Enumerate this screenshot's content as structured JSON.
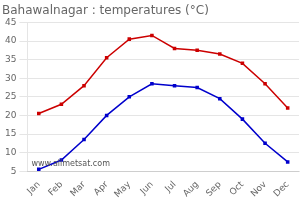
{
  "chart_data": {
    "type": "line",
    "title": "Bahawalnagar : temperatures (°C)",
    "categories": [
      "Jan",
      "Feb",
      "Mar",
      "Apr",
      "May",
      "Jun",
      "Jul",
      "Aug",
      "Sep",
      "Oct",
      "Nov",
      "Dec"
    ],
    "series": [
      {
        "color": "#cc0000",
        "marker": "square",
        "values": [
          20.5,
          23.0,
          28.0,
          35.5,
          40.5,
          41.5,
          38.0,
          37.5,
          36.5,
          34.0,
          28.5,
          22.0
        ]
      },
      {
        "color": "#0000cc",
        "marker": "square",
        "values": [
          5.5,
          8.0,
          13.5,
          20.0,
          25.0,
          28.5,
          28.0,
          27.5,
          24.5,
          19.0,
          12.5,
          7.5
        ]
      }
    ],
    "ylim": [
      5,
      45
    ],
    "yticks": [
      5,
      10,
      15,
      20,
      25,
      30,
      35,
      40,
      45
    ],
    "grid": true,
    "annotations": [
      "www.allmetsat.com"
    ]
  }
}
